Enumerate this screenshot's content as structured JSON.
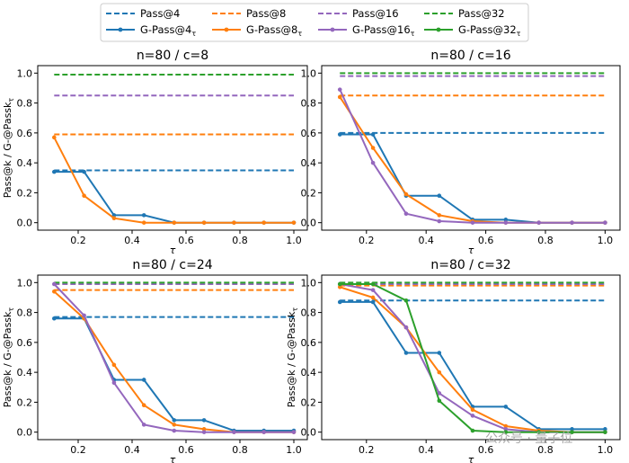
{
  "watermark": "公众号 · 量子位",
  "colors": {
    "k4": "#1f77b4",
    "k8": "#ff7f0e",
    "k16": "#9467bd",
    "k32": "#2ca02c"
  },
  "legend": {
    "pass": [
      "Pass@4",
      "Pass@8",
      "Pass@16",
      "Pass@32"
    ],
    "gpass": [
      "G-Pass@4",
      "G-Pass@8",
      "G-Pass@16",
      "G-Pass@32"
    ],
    "gpass_sub": "τ"
  },
  "chart_data": [
    {
      "type": "line",
      "title": "n=80 / c=8",
      "xlabel": "τ",
      "ylabel": "Pass@k / G-@Passk",
      "ylabel_sub": "τ",
      "xlim": [
        0.05,
        1.05
      ],
      "ylim": [
        -0.05,
        1.05
      ],
      "xticks": [
        "0.2",
        "0.4",
        "0.6",
        "0.8",
        "1.0"
      ],
      "yticks": [
        "0.0",
        "0.2",
        "0.4",
        "0.6",
        "0.8",
        "1.0"
      ],
      "x": [
        0.111,
        0.222,
        0.333,
        0.444,
        0.556,
        0.667,
        0.778,
        0.889,
        1.0
      ],
      "pass": [
        0.35,
        0.59,
        0.85,
        0.99
      ],
      "gpass": [
        [
          0.34,
          0.34,
          0.05,
          0.05,
          0.0,
          0.0,
          0.0,
          0.0,
          0.0
        ],
        [
          0.57,
          0.18,
          0.03,
          0.0,
          0.0,
          0.0,
          0.0,
          0.0,
          0.0
        ],
        null,
        null
      ]
    },
    {
      "type": "line",
      "title": "n=80 / c=16",
      "xlabel": "τ",
      "ylabel": "",
      "ylabel_sub": "",
      "xlim": [
        0.05,
        1.05
      ],
      "ylim": [
        -0.05,
        1.05
      ],
      "xticks": [
        "0.2",
        "0.4",
        "0.6",
        "0.8",
        "1.0"
      ],
      "yticks": [
        "0.0",
        "0.2",
        "0.4",
        "0.6",
        "0.8",
        "1.0"
      ],
      "x": [
        0.111,
        0.222,
        0.333,
        0.444,
        0.556,
        0.667,
        0.778,
        0.889,
        1.0
      ],
      "pass": [
        0.6,
        0.85,
        0.98,
        1.0
      ],
      "gpass": [
        [
          0.59,
          0.59,
          0.18,
          0.18,
          0.02,
          0.02,
          0.0,
          0.0,
          0.0
        ],
        [
          0.84,
          0.5,
          0.19,
          0.05,
          0.01,
          0.0,
          0.0,
          0.0,
          0.0
        ],
        [
          0.89,
          0.4,
          0.06,
          0.01,
          0.0,
          0.0,
          0.0,
          0.0,
          0.0
        ],
        null
      ]
    },
    {
      "type": "line",
      "title": "n=80 / c=24",
      "xlabel": "τ",
      "ylabel": "Pass@k / G-@Passk",
      "ylabel_sub": "τ",
      "xlim": [
        0.05,
        1.05
      ],
      "ylim": [
        -0.05,
        1.05
      ],
      "xticks": [
        "0.2",
        "0.4",
        "0.6",
        "0.8",
        "1.0"
      ],
      "yticks": [
        "0.0",
        "0.2",
        "0.4",
        "0.6",
        "0.8",
        "1.0"
      ],
      "x": [
        0.111,
        0.222,
        0.333,
        0.444,
        0.556,
        0.667,
        0.778,
        0.889,
        1.0
      ],
      "pass": [
        0.77,
        0.95,
        0.99,
        1.0
      ],
      "gpass": [
        [
          0.76,
          0.76,
          0.35,
          0.35,
          0.08,
          0.08,
          0.01,
          0.01,
          0.01
        ],
        [
          0.94,
          0.76,
          0.45,
          0.18,
          0.05,
          0.02,
          0.0,
          0.0,
          0.0
        ],
        [
          0.99,
          0.78,
          0.33,
          0.05,
          0.01,
          0.0,
          0.0,
          0.0,
          0.0
        ],
        null
      ]
    },
    {
      "type": "line",
      "title": "n=80 / c=32",
      "xlabel": "τ",
      "ylabel": "Pass@k / G-@Passk",
      "ylabel_sub": "τ",
      "xlim": [
        0.05,
        1.05
      ],
      "ylim": [
        -0.05,
        1.05
      ],
      "xticks": [
        "0.2",
        "0.4",
        "0.6",
        "0.8",
        "1.0"
      ],
      "yticks": [
        "0.0",
        "0.2",
        "0.4",
        "0.6",
        "0.8",
        "1.0"
      ],
      "x": [
        0.111,
        0.222,
        0.333,
        0.444,
        0.556,
        0.667,
        0.778,
        0.889,
        1.0
      ],
      "pass": [
        0.88,
        0.98,
        0.99,
        1.0
      ],
      "gpass": [
        [
          0.87,
          0.87,
          0.53,
          0.53,
          0.17,
          0.17,
          0.02,
          0.02,
          0.02
        ],
        [
          0.97,
          0.9,
          0.7,
          0.4,
          0.15,
          0.04,
          0.01,
          0.0,
          0.0
        ],
        [
          0.99,
          0.95,
          0.7,
          0.26,
          0.11,
          0.02,
          0.0,
          0.0,
          0.0
        ],
        [
          0.99,
          0.99,
          0.88,
          0.21,
          0.01,
          0.0,
          0.0,
          0.0,
          0.0
        ]
      ]
    }
  ]
}
